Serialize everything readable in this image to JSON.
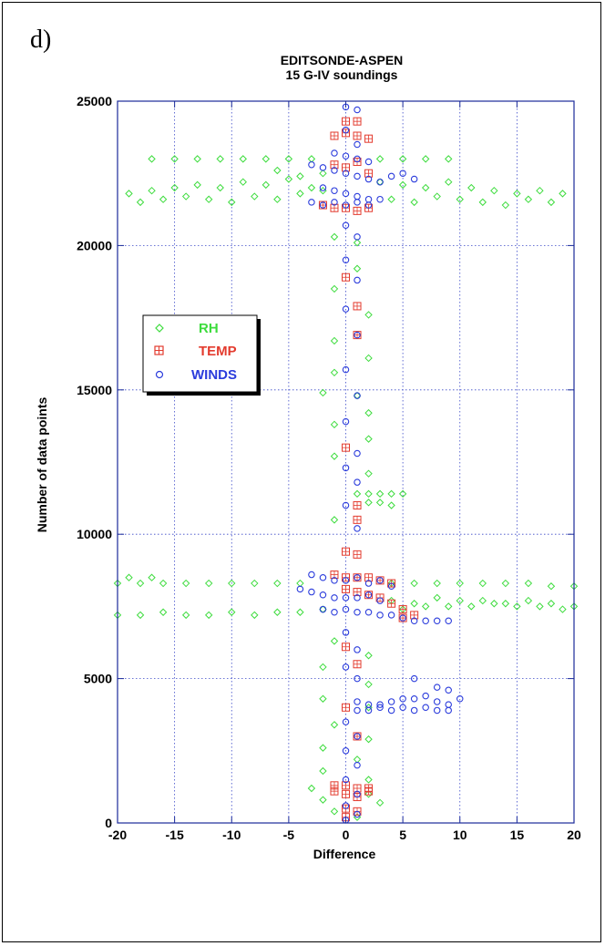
{
  "panel_label": "d)",
  "chart_data": {
    "type": "scatter",
    "title": "EDITSONDE-ASPEN",
    "subtitle": "15 G-IV soundings",
    "xlabel": "Difference",
    "ylabel": "Number of data points",
    "xlim": [
      -20,
      20
    ],
    "ylim": [
      0,
      25000
    ],
    "x_ticks": [
      "-20",
      "-15",
      "-10",
      "-5",
      "0",
      "5",
      "10",
      "15",
      "20"
    ],
    "y_ticks": [
      "0",
      "5000",
      "10000",
      "15000",
      "20000",
      "25000"
    ],
    "grid": true,
    "legend_position": "left",
    "series": [
      {
        "name": "RH",
        "color": "#3ddc3d",
        "marker": "diamond",
        "points": [
          [
            -17,
            23000
          ],
          [
            -15,
            23000
          ],
          [
            -13,
            23000
          ],
          [
            -11,
            23000
          ],
          [
            -9,
            23000
          ],
          [
            -7,
            23000
          ],
          [
            -5,
            23000
          ],
          [
            -3,
            23000
          ],
          [
            -19,
            21800
          ],
          [
            -17,
            21900
          ],
          [
            -15,
            22000
          ],
          [
            -13,
            22100
          ],
          [
            -11,
            22000
          ],
          [
            -9,
            22200
          ],
          [
            -7,
            22100
          ],
          [
            -5,
            22300
          ],
          [
            -3,
            22000
          ],
          [
            -18,
            21500
          ],
          [
            -16,
            21600
          ],
          [
            -14,
            21700
          ],
          [
            -12,
            21600
          ],
          [
            -10,
            21500
          ],
          [
            -8,
            21700
          ],
          [
            -6,
            21600
          ],
          [
            -4,
            21800
          ],
          [
            -2,
            21900
          ],
          [
            -6,
            22600
          ],
          [
            -4,
            22400
          ],
          [
            -2,
            22500
          ],
          [
            3,
            23000
          ],
          [
            5,
            23000
          ],
          [
            7,
            23000
          ],
          [
            9,
            23000
          ],
          [
            3,
            22200
          ],
          [
            5,
            22100
          ],
          [
            7,
            22000
          ],
          [
            9,
            22200
          ],
          [
            11,
            22000
          ],
          [
            13,
            21900
          ],
          [
            15,
            21800
          ],
          [
            17,
            21900
          ],
          [
            19,
            21800
          ],
          [
            4,
            21600
          ],
          [
            6,
            21500
          ],
          [
            8,
            21700
          ],
          [
            10,
            21600
          ],
          [
            12,
            21500
          ],
          [
            14,
            21400
          ],
          [
            16,
            21600
          ],
          [
            18,
            21500
          ],
          [
            -1,
            20300
          ],
          [
            1,
            20100
          ],
          [
            1,
            19200
          ],
          [
            -1,
            18500
          ],
          [
            2,
            17600
          ],
          [
            -1,
            16700
          ],
          [
            2,
            16100
          ],
          [
            -1,
            15600
          ],
          [
            -2,
            14900
          ],
          [
            1,
            14800
          ],
          [
            2,
            14200
          ],
          [
            -1,
            13800
          ],
          [
            2,
            13300
          ],
          [
            -1,
            12700
          ],
          [
            2,
            12100
          ],
          [
            1,
            11400
          ],
          [
            2,
            11400
          ],
          [
            3,
            11400
          ],
          [
            4,
            11400
          ],
          [
            5,
            11400
          ],
          [
            2,
            11100
          ],
          [
            3,
            11100
          ],
          [
            4,
            11000
          ],
          [
            -1,
            10500
          ],
          [
            -20,
            8300
          ],
          [
            -18,
            8300
          ],
          [
            -16,
            8300
          ],
          [
            -14,
            8300
          ],
          [
            -12,
            8300
          ],
          [
            -10,
            8300
          ],
          [
            -8,
            8300
          ],
          [
            -6,
            8300
          ],
          [
            -4,
            8300
          ],
          [
            -19,
            8500
          ],
          [
            -17,
            8500
          ],
          [
            -20,
            7200
          ],
          [
            -18,
            7200
          ],
          [
            -16,
            7300
          ],
          [
            -14,
            7200
          ],
          [
            -12,
            7200
          ],
          [
            -10,
            7300
          ],
          [
            -8,
            7200
          ],
          [
            -6,
            7300
          ],
          [
            -4,
            7300
          ],
          [
            -2,
            7400
          ],
          [
            4,
            8300
          ],
          [
            6,
            8300
          ],
          [
            8,
            8300
          ],
          [
            10,
            8300
          ],
          [
            12,
            8300
          ],
          [
            14,
            8300
          ],
          [
            16,
            8300
          ],
          [
            18,
            8200
          ],
          [
            20,
            8200
          ],
          [
            4,
            7700
          ],
          [
            6,
            7600
          ],
          [
            8,
            7800
          ],
          [
            10,
            7700
          ],
          [
            12,
            7700
          ],
          [
            14,
            7600
          ],
          [
            16,
            7700
          ],
          [
            18,
            7600
          ],
          [
            20,
            7500
          ],
          [
            5,
            7400
          ],
          [
            7,
            7500
          ],
          [
            9,
            7500
          ],
          [
            11,
            7500
          ],
          [
            13,
            7600
          ],
          [
            15,
            7500
          ],
          [
            17,
            7500
          ],
          [
            19,
            7400
          ],
          [
            -1,
            6300
          ],
          [
            2,
            5800
          ],
          [
            -2,
            5400
          ],
          [
            2,
            4800
          ],
          [
            -2,
            4300
          ],
          [
            2,
            4000
          ],
          [
            -1,
            3400
          ],
          [
            2,
            2900
          ],
          [
            -2,
            2600
          ],
          [
            1,
            2200
          ],
          [
            -2,
            1800
          ],
          [
            2,
            1500
          ],
          [
            -3,
            1200
          ],
          [
            2,
            1000
          ],
          [
            -2,
            800
          ],
          [
            3,
            700
          ],
          [
            -1,
            400
          ],
          [
            1,
            200
          ]
        ]
      },
      {
        "name": "TEMP",
        "color": "#e33b2e",
        "marker": "square",
        "points": [
          [
            0,
            24300
          ],
          [
            1,
            24300
          ],
          [
            -1,
            23800
          ],
          [
            0,
            23900
          ],
          [
            1,
            23800
          ],
          [
            2,
            23700
          ],
          [
            -1,
            22800
          ],
          [
            0,
            22700
          ],
          [
            1,
            22900
          ],
          [
            2,
            22500
          ],
          [
            -2,
            21400
          ],
          [
            -1,
            21300
          ],
          [
            0,
            21300
          ],
          [
            1,
            21200
          ],
          [
            2,
            21300
          ],
          [
            0,
            18900
          ],
          [
            1,
            17900
          ],
          [
            1,
            16900
          ],
          [
            0,
            13000
          ],
          [
            1,
            11000
          ],
          [
            1,
            10500
          ],
          [
            0,
            9400
          ],
          [
            1,
            9300
          ],
          [
            -1,
            8600
          ],
          [
            0,
            8500
          ],
          [
            1,
            8500
          ],
          [
            2,
            8500
          ],
          [
            3,
            8400
          ],
          [
            4,
            8300
          ],
          [
            0,
            8100
          ],
          [
            1,
            8000
          ],
          [
            2,
            7900
          ],
          [
            3,
            7800
          ],
          [
            4,
            7600
          ],
          [
            5,
            7400
          ],
          [
            6,
            7200
          ],
          [
            5,
            7100
          ],
          [
            0,
            6100
          ],
          [
            1,
            5500
          ],
          [
            0,
            4000
          ],
          [
            1,
            3000
          ],
          [
            -1,
            1300
          ],
          [
            0,
            1300
          ],
          [
            1,
            1200
          ],
          [
            2,
            1200
          ],
          [
            -1,
            1100
          ],
          [
            0,
            1000
          ],
          [
            1,
            900
          ],
          [
            2,
            1100
          ],
          [
            0,
            500
          ],
          [
            1,
            400
          ],
          [
            0,
            200
          ]
        ]
      },
      {
        "name": "WINDS",
        "color": "#2b3cdc",
        "marker": "circle",
        "points": [
          [
            0,
            24800
          ],
          [
            1,
            24700
          ],
          [
            0,
            24000
          ],
          [
            1,
            23500
          ],
          [
            -1,
            23200
          ],
          [
            0,
            23100
          ],
          [
            1,
            23000
          ],
          [
            2,
            22900
          ],
          [
            -3,
            22800
          ],
          [
            -2,
            22700
          ],
          [
            -1,
            22600
          ],
          [
            0,
            22500
          ],
          [
            1,
            22400
          ],
          [
            2,
            22300
          ],
          [
            3,
            22200
          ],
          [
            4,
            22400
          ],
          [
            5,
            22500
          ],
          [
            6,
            22300
          ],
          [
            -2,
            22000
          ],
          [
            -1,
            21900
          ],
          [
            0,
            21800
          ],
          [
            1,
            21700
          ],
          [
            2,
            21600
          ],
          [
            3,
            21600
          ],
          [
            -3,
            21500
          ],
          [
            -2,
            21400
          ],
          [
            -1,
            21500
          ],
          [
            0,
            21400
          ],
          [
            1,
            21500
          ],
          [
            2,
            21400
          ],
          [
            0,
            20700
          ],
          [
            1,
            20300
          ],
          [
            0,
            19500
          ],
          [
            1,
            18800
          ],
          [
            0,
            17800
          ],
          [
            1,
            16900
          ],
          [
            0,
            15700
          ],
          [
            1,
            14800
          ],
          [
            0,
            13900
          ],
          [
            1,
            12800
          ],
          [
            0,
            12300
          ],
          [
            1,
            11800
          ],
          [
            0,
            11000
          ],
          [
            1,
            10200
          ],
          [
            -3,
            8600
          ],
          [
            -2,
            8500
          ],
          [
            -1,
            8400
          ],
          [
            0,
            8400
          ],
          [
            1,
            8500
          ],
          [
            2,
            8300
          ],
          [
            3,
            8400
          ],
          [
            4,
            8200
          ],
          [
            -4,
            8100
          ],
          [
            -3,
            8000
          ],
          [
            -2,
            7900
          ],
          [
            -1,
            7800
          ],
          [
            0,
            7800
          ],
          [
            1,
            7800
          ],
          [
            2,
            7900
          ],
          [
            3,
            7700
          ],
          [
            -2,
            7400
          ],
          [
            -1,
            7300
          ],
          [
            0,
            7400
          ],
          [
            1,
            7300
          ],
          [
            2,
            7300
          ],
          [
            3,
            7200
          ],
          [
            4,
            7200
          ],
          [
            5,
            7100
          ],
          [
            6,
            7000
          ],
          [
            7,
            7000
          ],
          [
            8,
            7000
          ],
          [
            9,
            7000
          ],
          [
            0,
            6600
          ],
          [
            1,
            6000
          ],
          [
            0,
            5400
          ],
          [
            1,
            5000
          ],
          [
            6,
            5000
          ],
          [
            8,
            4700
          ],
          [
            9,
            4600
          ],
          [
            1,
            4200
          ],
          [
            2,
            4100
          ],
          [
            3,
            4100
          ],
          [
            4,
            4200
          ],
          [
            5,
            4300
          ],
          [
            6,
            4300
          ],
          [
            7,
            4400
          ],
          [
            8,
            4200
          ],
          [
            9,
            4100
          ],
          [
            10,
            4300
          ],
          [
            1,
            3900
          ],
          [
            2,
            3900
          ],
          [
            3,
            4000
          ],
          [
            4,
            3900
          ],
          [
            5,
            4000
          ],
          [
            6,
            3900
          ],
          [
            7,
            4000
          ],
          [
            8,
            3900
          ],
          [
            9,
            3900
          ],
          [
            0,
            3500
          ],
          [
            1,
            3000
          ],
          [
            0,
            2500
          ],
          [
            1,
            2000
          ],
          [
            0,
            1500
          ],
          [
            1,
            1000
          ],
          [
            0,
            600
          ],
          [
            1,
            300
          ],
          [
            0,
            100
          ]
        ]
      }
    ]
  }
}
